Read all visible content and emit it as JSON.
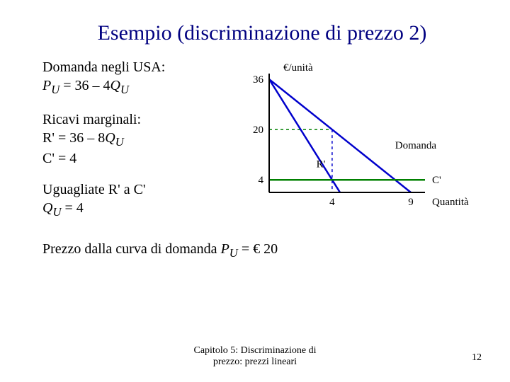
{
  "title": "Esempio (discriminazione di prezzo 2)",
  "left": {
    "block1_line1": "Domanda negli USA:",
    "block1_line2_html": "P_U = 36 – 4Q_U",
    "block2_line1": "Ricavi marginali:",
    "block2_line2_html": "R' = 36 – 8Q_U",
    "block2_line3": "C' = 4",
    "block3_line1": "Uguagliate R' a C'",
    "block3_line2_html": "Q_U = 4"
  },
  "bottom_line_prefix": "Prezzo dalla curva di domanda  ",
  "bottom_line_eq": "P_U = € 20",
  "chart": {
    "y_title": "€/unità",
    "y_ticks": [
      36,
      20,
      4
    ],
    "x_ticks": [
      4,
      9
    ],
    "x_title": "Quantità",
    "labels": {
      "demand": "Domanda",
      "mr": "R'",
      "mc": "C'"
    },
    "colors": {
      "axis": "#000000",
      "demand": "#0000cc",
      "mr": "#0000cc",
      "mc": "#008000",
      "green_dash": "#008000",
      "blue_dash": "#0000cc"
    },
    "y_max": 36,
    "x_max": 9,
    "mc_value": 4,
    "demand_points": {
      "x0": 0,
      "y0": 36,
      "x1": 9,
      "y1": 0
    },
    "mr_points": {
      "x0": 0,
      "y0": 36,
      "x1": 4.5,
      "y1": 0
    },
    "eq": {
      "q": 4,
      "p": 20
    }
  },
  "footer_line1": "Capitolo 5: Discriminazione di",
  "footer_line2": "prezzo: prezzi lineari",
  "page_number": "12"
}
